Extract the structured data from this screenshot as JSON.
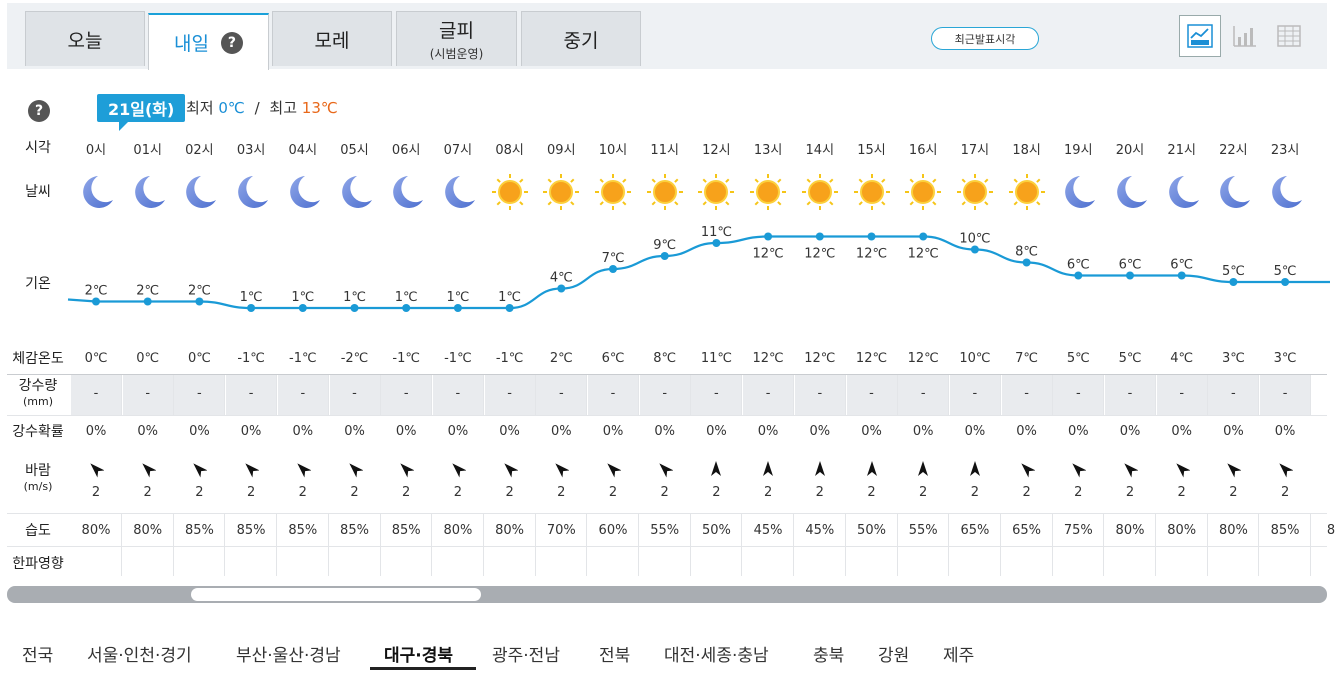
{
  "tabs": [
    {
      "label": "오늘",
      "sub": ""
    },
    {
      "label": "내일",
      "sub": ""
    },
    {
      "label": "모레",
      "sub": ""
    },
    {
      "label": "글피",
      "sub": "(시범운영)"
    },
    {
      "label": "중기",
      "sub": ""
    }
  ],
  "help_icon": "?",
  "recent_button": "최근발표시각",
  "view_icons": [
    "line-chart-icon",
    "bar-chart-icon",
    "table-icon"
  ],
  "date_badge": "21일(화)",
  "summary": {
    "min_label": "최저",
    "min_value": "0℃",
    "sep": "/",
    "max_label": "최고",
    "max_value": "13℃"
  },
  "row_labels": {
    "time": "시각",
    "weather": "날씨",
    "temp": "기온",
    "feels": "체감온도",
    "rain_amount": "강수량",
    "rain_unit": "(mm)",
    "rain_prob": "강수확률",
    "wind": "바람",
    "wind_unit": "(m/s)",
    "humidity": "습도",
    "cold": "한파영향"
  },
  "hours": [
    "0시",
    "01시",
    "02시",
    "03시",
    "04시",
    "05시",
    "06시",
    "07시",
    "08시",
    "09시",
    "10시",
    "11시",
    "12시",
    "13시",
    "14시",
    "15시",
    "16시",
    "17시",
    "18시",
    "19시",
    "20시",
    "21시",
    "22시",
    "23시"
  ],
  "weather_icons": [
    "moon-icon",
    "moon-icon",
    "moon-icon",
    "moon-icon",
    "moon-icon",
    "moon-icon",
    "moon-icon",
    "moon-icon",
    "sun-icon",
    "sun-icon",
    "sun-icon",
    "sun-icon",
    "sun-icon",
    "sun-icon",
    "sun-icon",
    "sun-icon",
    "sun-icon",
    "sun-icon",
    "sun-icon",
    "moon-icon",
    "moon-icon",
    "moon-icon",
    "moon-icon",
    "moon-icon"
  ],
  "temps": [
    2,
    2,
    2,
    1,
    1,
    1,
    1,
    1,
    1,
    4,
    7,
    9,
    11,
    12,
    12,
    12,
    12,
    10,
    8,
    6,
    6,
    6,
    5,
    5
  ],
  "temp_unit": "℃",
  "feels": [
    "0℃",
    "0℃",
    "0℃",
    "-1℃",
    "-1℃",
    "-2℃",
    "-1℃",
    "-1℃",
    "-1℃",
    "2℃",
    "6℃",
    "8℃",
    "11℃",
    "12℃",
    "12℃",
    "12℃",
    "12℃",
    "10℃",
    "7℃",
    "5℃",
    "5℃",
    "4℃",
    "3℃",
    "3℃"
  ],
  "rain_amount": [
    "-",
    "-",
    "-",
    "-",
    "-",
    "-",
    "-",
    "-",
    "-",
    "-",
    "-",
    "-",
    "-",
    "-",
    "-",
    "-",
    "-",
    "-",
    "-",
    "-",
    "-",
    "-",
    "-",
    "-"
  ],
  "rain_prob": [
    "0%",
    "0%",
    "0%",
    "0%",
    "0%",
    "0%",
    "0%",
    "0%",
    "0%",
    "0%",
    "0%",
    "0%",
    "0%",
    "0%",
    "0%",
    "0%",
    "0%",
    "0%",
    "0%",
    "0%",
    "0%",
    "0%",
    "0%",
    "0%"
  ],
  "wind_dir_deg": [
    315,
    315,
    315,
    315,
    315,
    315,
    315,
    315,
    315,
    315,
    315,
    315,
    0,
    0,
    0,
    0,
    0,
    0,
    315,
    315,
    315,
    315,
    315,
    315
  ],
  "wind_speed": [
    "2",
    "2",
    "2",
    "2",
    "2",
    "2",
    "2",
    "2",
    "2",
    "2",
    "2",
    "2",
    "2",
    "2",
    "2",
    "2",
    "2",
    "2",
    "2",
    "2",
    "2",
    "2",
    "2",
    "2"
  ],
  "humidity": [
    "80%",
    "80%",
    "85%",
    "85%",
    "85%",
    "85%",
    "85%",
    "80%",
    "80%",
    "70%",
    "60%",
    "55%",
    "50%",
    "45%",
    "45%",
    "50%",
    "55%",
    "65%",
    "65%",
    "75%",
    "80%",
    "80%",
    "80%",
    "85%"
  ],
  "humidity_overflow": "8",
  "regions": [
    "전국",
    "서울·인천·경기",
    "부산·울산·경남",
    "대구·경북",
    "광주·전남",
    "전북",
    "대전·세종·충남",
    "충북",
    "강원",
    "제주"
  ],
  "active_region": "대구·경북",
  "colors": {
    "accent": "#1e9ed8",
    "min": "#1a8fd6",
    "max": "#e8681a",
    "line": "#1a9ad6"
  }
}
